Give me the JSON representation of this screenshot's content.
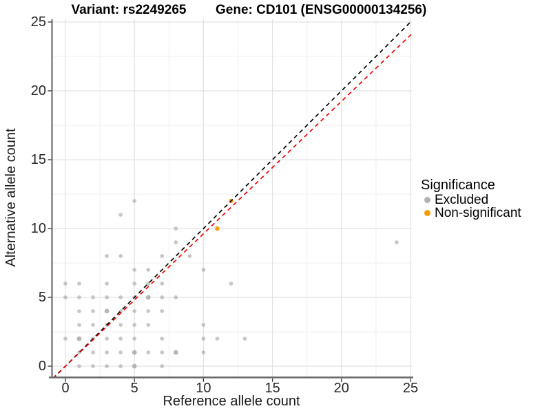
{
  "header": {
    "variant_title": "Variant: rs2249265",
    "gene_title": "Gene: CD101 (ENSG00000134256)"
  },
  "axes": {
    "x_label": "Reference allele count",
    "y_label": "Alternative allele count",
    "x_ticks": [
      "0",
      "5",
      "10",
      "15",
      "20",
      "25"
    ],
    "y_ticks": [
      "0",
      "5",
      "10",
      "15",
      "20",
      "25"
    ]
  },
  "legend": {
    "title": "Significance",
    "items": [
      {
        "label": "Excluded",
        "color": "#b1b1b1"
      },
      {
        "label": "Non-significant",
        "color": "#f89c0b"
      }
    ]
  },
  "colors": {
    "excluded_point": "#b1b1b1",
    "non_significant_point": "#f89c0b",
    "identity_line": "#000000",
    "ratio_line": "#ee0000",
    "grid_major": "#e2e2e2",
    "grid_minor": "#efefef",
    "y_axis_line": "#1f1f1f",
    "x_axis_line": "#6b6b6b",
    "tick_mark": "#333333"
  },
  "chart_data": {
    "type": "scatter",
    "title": "Variant: rs2249265 — Gene: CD101 (ENSG00000134256)",
    "xlabel": "Reference allele count",
    "ylabel": "Alternative allele count",
    "xlim": [
      -1.1,
      25.2
    ],
    "ylim": [
      -0.8,
      25.3
    ],
    "x_ticks": [
      0,
      5,
      10,
      15,
      20,
      25
    ],
    "y_ticks": [
      0,
      5,
      10,
      15,
      20,
      25
    ],
    "grid": {
      "major": [
        0,
        5,
        10,
        15,
        20,
        25
      ],
      "minor": [
        2.5,
        7.5,
        12.5,
        17.5,
        22.5
      ]
    },
    "legend_position": "right",
    "series": [
      {
        "name": "Excluded",
        "color": "#b1b1b1",
        "points": [
          [
            1,
            0
          ],
          [
            2,
            0
          ],
          [
            3,
            0
          ],
          [
            4,
            0
          ],
          [
            5,
            0,
            1
          ],
          [
            7,
            0
          ],
          [
            1,
            1
          ],
          [
            2,
            1
          ],
          [
            3,
            1
          ],
          [
            4,
            1
          ],
          [
            5,
            1,
            1
          ],
          [
            6,
            1
          ],
          [
            7,
            1
          ],
          [
            8,
            1,
            1
          ],
          [
            10,
            1
          ],
          [
            0,
            2
          ],
          [
            1,
            2,
            1
          ],
          [
            2,
            2
          ],
          [
            3,
            2
          ],
          [
            4,
            2
          ],
          [
            5,
            2
          ],
          [
            7,
            2
          ],
          [
            10,
            2
          ],
          [
            11,
            2
          ],
          [
            13,
            2
          ],
          [
            1,
            3
          ],
          [
            2,
            3
          ],
          [
            3,
            3
          ],
          [
            4,
            3
          ],
          [
            5,
            3
          ],
          [
            6,
            3
          ],
          [
            10,
            3
          ],
          [
            1,
            4
          ],
          [
            2,
            4
          ],
          [
            3,
            4,
            1
          ],
          [
            4,
            4
          ],
          [
            5,
            4
          ],
          [
            6,
            4
          ],
          [
            7,
            4
          ],
          [
            0,
            5
          ],
          [
            1,
            5
          ],
          [
            2,
            5
          ],
          [
            3,
            5
          ],
          [
            4,
            5
          ],
          [
            5,
            5
          ],
          [
            6,
            5,
            1
          ],
          [
            7,
            5
          ],
          [
            8,
            5
          ],
          [
            0,
            6
          ],
          [
            1,
            6
          ],
          [
            3,
            6
          ],
          [
            5,
            6
          ],
          [
            6,
            6
          ],
          [
            7,
            6
          ],
          [
            12,
            6
          ],
          [
            5,
            7
          ],
          [
            6,
            7
          ],
          [
            10,
            7
          ],
          [
            3,
            8
          ],
          [
            4,
            8
          ],
          [
            7,
            8
          ],
          [
            9,
            8
          ],
          [
            8,
            9
          ],
          [
            24,
            9
          ],
          [
            8,
            10
          ],
          [
            4,
            11
          ],
          [
            5,
            12
          ]
        ]
      },
      {
        "name": "Non-significant",
        "color": "#f89c0b",
        "points": [
          [
            11,
            10
          ],
          [
            12,
            12
          ]
        ]
      }
    ],
    "lines": [
      {
        "name": "identity-line",
        "color": "#000000",
        "dashed": true,
        "slope": 1,
        "intercept": 0
      },
      {
        "name": "ratio-line",
        "color": "#ee0000",
        "dashed": true,
        "slope": 0.962,
        "intercept": 0
      }
    ]
  }
}
